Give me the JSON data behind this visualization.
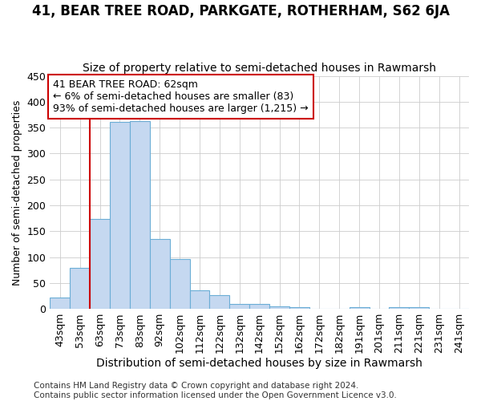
{
  "title": "41, BEAR TREE ROAD, PARKGATE, ROTHERHAM, S62 6JA",
  "subtitle": "Size of property relative to semi-detached houses in Rawmarsh",
  "xlabel": "Distribution of semi-detached houses by size in Rawmarsh",
  "ylabel": "Number of semi-detached properties",
  "categories": [
    "43sqm",
    "53sqm",
    "63sqm",
    "73sqm",
    "83sqm",
    "92sqm",
    "102sqm",
    "112sqm",
    "122sqm",
    "132sqm",
    "142sqm",
    "152sqm",
    "162sqm",
    "172sqm",
    "182sqm",
    "191sqm",
    "201sqm",
    "211sqm",
    "221sqm",
    "231sqm",
    "241sqm"
  ],
  "bar_heights": [
    22,
    80,
    174,
    361,
    362,
    135,
    97,
    36,
    26,
    10,
    9,
    5,
    4,
    0,
    0,
    4,
    0,
    4,
    4,
    0,
    0
  ],
  "bar_color": "#c5d8f0",
  "bar_edge_color": "#6baed6",
  "grid_color": "#cccccc",
  "background_color": "#ffffff",
  "vline_color": "#cc0000",
  "vline_x_idx": 2,
  "annotation_text": "41 BEAR TREE ROAD: 62sqm\n← 6% of semi-detached houses are smaller (83)\n93% of semi-detached houses are larger (1,215) →",
  "annotation_box_color": "#ffffff",
  "annotation_edge_color": "#cc0000",
  "ylim": [
    0,
    450
  ],
  "yticks": [
    0,
    50,
    100,
    150,
    200,
    250,
    300,
    350,
    400,
    450
  ],
  "footer_line1": "Contains HM Land Registry data © Crown copyright and database right 2024.",
  "footer_line2": "Contains public sector information licensed under the Open Government Licence v3.0.",
  "title_fontsize": 12,
  "subtitle_fontsize": 10,
  "xlabel_fontsize": 10,
  "ylabel_fontsize": 9,
  "tick_fontsize": 9,
  "annotation_fontsize": 9,
  "footer_fontsize": 7.5
}
